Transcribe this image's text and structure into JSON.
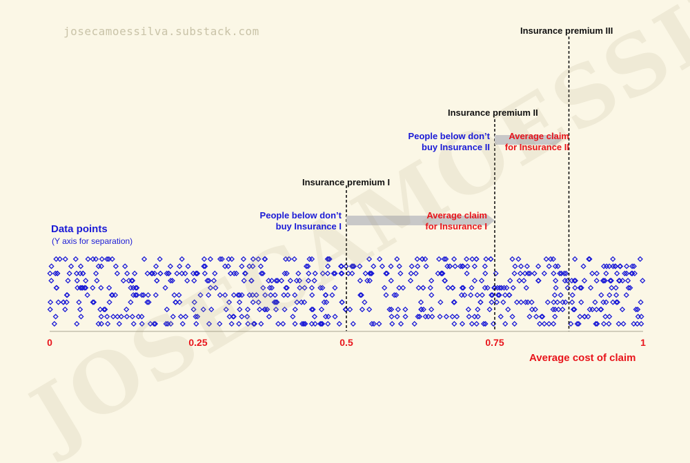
{
  "watermark": {
    "url": "josecamoessilva.substack.com",
    "text": "JOSECAMOESSILVA"
  },
  "legend": {
    "title": "Data points",
    "subtitle": "(Y axis for separation)"
  },
  "colors": {
    "background": "#fbf7e6",
    "points": "#1a1ad6",
    "accent": "#e8141b",
    "arrow": "#c8c8c8"
  },
  "chart_data": {
    "type": "scatter",
    "xlabel": "Average cost of claim",
    "xlim": [
      0,
      1
    ],
    "x_ticks": [
      "0",
      "0.25",
      "0.5",
      "0.75",
      "1"
    ],
    "x_tick_values": [
      0,
      0.25,
      0.5,
      0.75,
      1
    ],
    "y_axis_note": "(Y axis for separation)",
    "points": {
      "count": 650,
      "distribution": "uniform",
      "rows": 10
    },
    "thresholds": [
      {
        "label": "Insurance premium I",
        "x": 0.5
      },
      {
        "label": "Insurance premium II",
        "x": 0.75
      },
      {
        "label": "Insurance premium III",
        "x": 0.875
      }
    ],
    "annotations": {
      "below_I": [
        "People below don’t",
        "buy Insurance I"
      ],
      "avg_I": [
        "Average claim",
        "for Insurance I"
      ],
      "below_II": [
        "People below don’t",
        "buy Insurance II"
      ],
      "avg_II": [
        "Average claim",
        "for Insurance II"
      ]
    }
  }
}
